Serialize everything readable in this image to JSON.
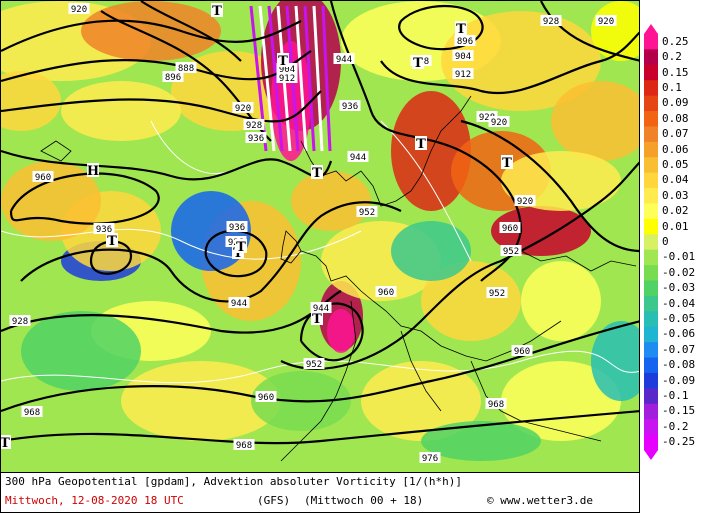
{
  "footer": {
    "line1": "300 hPa Geopotential [gpdam], Advektion absoluter Vorticity [1/(h*h)]",
    "date": "Mittwoch, 12-08-2020  18 UTC",
    "model": "(GFS)",
    "run": "(Mittwoch 00 + 18)",
    "credit": "© www.wetter3.de"
  },
  "colorbar": {
    "labels": [
      "0.25",
      "0.2",
      "0.15",
      "0.1",
      "0.09",
      "0.08",
      "0.07",
      "0.06",
      "0.05",
      "0.04",
      "0.03",
      "0.02",
      "0.01",
      "0",
      "-0.01",
      "-0.02",
      "-0.03",
      "-0.04",
      "-0.05",
      "-0.06",
      "-0.07",
      "-0.08",
      "-0.09",
      "-0.1",
      "-0.15",
      "-0.2",
      "-0.25"
    ],
    "colors": [
      "#ff1493",
      "#b4004b",
      "#c8002a",
      "#dc2814",
      "#e64614",
      "#f06414",
      "#f08228",
      "#f5a028",
      "#fabe32",
      "#ffd73c",
      "#ffeb50",
      "#ffff5a",
      "#ffff00",
      "#d7f064",
      "#a0e650",
      "#78dc50",
      "#50d264",
      "#3cc88c",
      "#28beb4",
      "#1eb4d2",
      "#1e8cf0",
      "#1464f0",
      "#1e3cdc",
      "#5a28c8",
      "#a01edc",
      "#c814f0",
      "#e600ff"
    ]
  },
  "map": {
    "contour_labels": [
      "920",
      "896",
      "904",
      "912",
      "928",
      "920",
      "888",
      "896",
      "904",
      "912",
      "920",
      "928",
      "936",
      "928",
      "936",
      "944",
      "952",
      "960",
      "936",
      "928",
      "944",
      "952",
      "960",
      "968",
      "944",
      "952",
      "960",
      "968",
      "960",
      "968",
      "976",
      "960",
      "952",
      "944",
      "936",
      "928",
      "920",
      "920",
      "928"
    ],
    "pressure_centres": [
      "T",
      "T",
      "T",
      "T",
      "T",
      "T",
      "T",
      "T",
      "T",
      "T",
      "H",
      "T",
      "T"
    ]
  }
}
